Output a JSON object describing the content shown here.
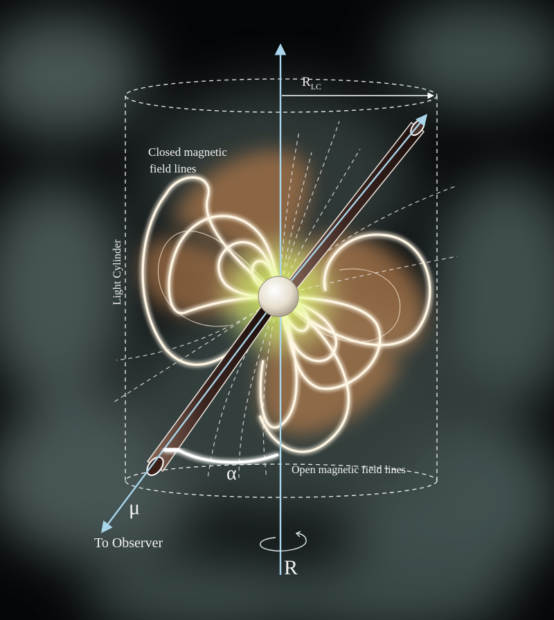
{
  "labels": {
    "closed_lines": "Closed magnetic field lines",
    "closed_lines_1": "Closed magnetic",
    "closed_lines_2": "field lines",
    "open_lines": "Open magnetic field lines",
    "light_cylinder": "Light Cylinder",
    "to_observer": "To Observer",
    "mu": "μ",
    "alpha": "α",
    "rotation_axis": "R",
    "radius_main": "R",
    "radius_sub": "LC"
  },
  "colors": {
    "background": "#050607",
    "nebula": "#8fa8a6",
    "field_lobe": "#d8945a",
    "field_line": "#fff6e4",
    "axis": "#a9d6ea",
    "star": "#efe9dc",
    "glow": "#e8ff7a"
  }
}
